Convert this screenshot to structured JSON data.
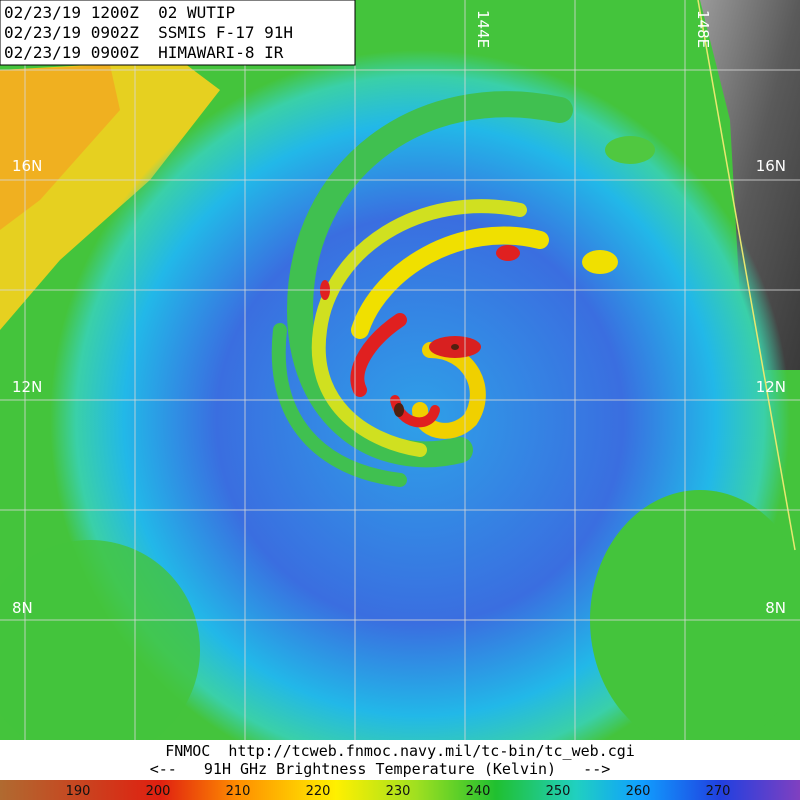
{
  "header": {
    "lines": [
      "02/23/19 1200Z  02 WUTIP",
      "02/23/19 0902Z  SSMIS F-17 91H",
      "02/23/19 0900Z  HIMAWARI-8 IR"
    ]
  },
  "map": {
    "lat_labels": [
      "16N",
      "12N",
      "8N"
    ],
    "lon_labels": [
      "144E",
      "148E"
    ]
  },
  "footer": {
    "source": "FNMOC  http://tcweb.fnmoc.navy.mil/tc-bin/tc_web.cgi",
    "legend_title": "<--   91H GHz Brightness Temperature (Kelvin)   -->"
  },
  "colorbar": {
    "labels": [
      190,
      200,
      210,
      220,
      230,
      240,
      250,
      260,
      270
    ]
  }
}
